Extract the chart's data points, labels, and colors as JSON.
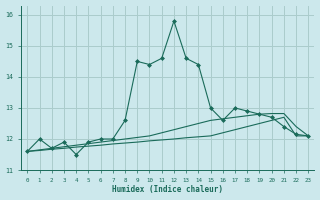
{
  "xlabel": "Humidex (Indice chaleur)",
  "background_color": "#cce8ec",
  "grid_color": "#aacccc",
  "line_color": "#1a6b5a",
  "xlim": [
    -0.5,
    23.5
  ],
  "ylim": [
    11.0,
    16.3
  ],
  "yticks": [
    11,
    12,
    13,
    14,
    15,
    16
  ],
  "xticks": [
    0,
    1,
    2,
    3,
    4,
    5,
    6,
    7,
    8,
    9,
    10,
    11,
    12,
    13,
    14,
    15,
    16,
    17,
    18,
    19,
    20,
    21,
    22,
    23
  ],
  "series1_x": [
    0,
    1,
    2,
    3,
    4,
    5,
    6,
    7,
    8,
    9,
    10,
    11,
    12,
    13,
    14,
    15,
    16,
    17,
    18,
    19,
    20,
    21,
    22,
    23
  ],
  "series1_y": [
    11.6,
    12.0,
    11.7,
    11.9,
    11.5,
    11.9,
    12.0,
    12.0,
    12.6,
    14.5,
    14.4,
    14.6,
    15.8,
    14.6,
    14.4,
    13.0,
    12.6,
    13.0,
    12.9,
    12.8,
    12.7,
    12.4,
    12.15,
    12.1
  ],
  "series2_x": [
    0,
    1,
    2,
    3,
    4,
    5,
    6,
    7,
    8,
    9,
    10,
    11,
    12,
    13,
    14,
    15,
    16,
    17,
    18,
    19,
    20,
    21,
    22,
    23
  ],
  "series2_y": [
    11.6,
    11.63,
    11.67,
    11.7,
    11.74,
    11.77,
    11.8,
    11.84,
    11.87,
    11.9,
    11.94,
    11.97,
    12.0,
    12.04,
    12.07,
    12.1,
    12.2,
    12.3,
    12.4,
    12.5,
    12.6,
    12.7,
    12.1,
    12.1
  ],
  "series3_x": [
    0,
    1,
    2,
    3,
    4,
    5,
    6,
    7,
    8,
    9,
    10,
    11,
    12,
    13,
    14,
    15,
    16,
    17,
    18,
    19,
    20,
    21,
    22,
    23
  ],
  "series3_y": [
    11.6,
    11.65,
    11.7,
    11.75,
    11.8,
    11.85,
    11.9,
    11.95,
    12.0,
    12.05,
    12.1,
    12.2,
    12.3,
    12.4,
    12.5,
    12.6,
    12.65,
    12.7,
    12.75,
    12.8,
    12.82,
    12.82,
    12.4,
    12.1
  ]
}
